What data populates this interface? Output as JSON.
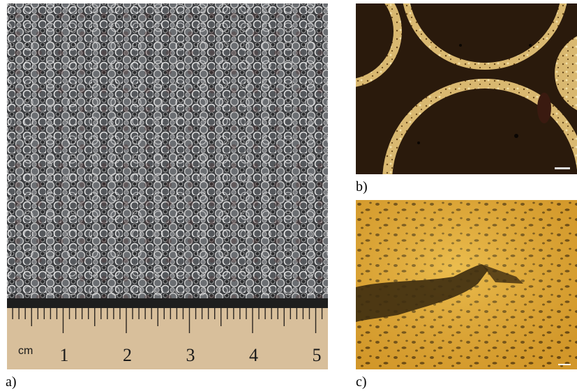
{
  "panels": [
    {
      "label": "a)",
      "ruler": {
        "unit": "cm",
        "numbers": [
          "1",
          "2",
          "3",
          "4",
          "5"
        ]
      }
    },
    {
      "label": "b)"
    },
    {
      "label": "c)"
    }
  ]
}
